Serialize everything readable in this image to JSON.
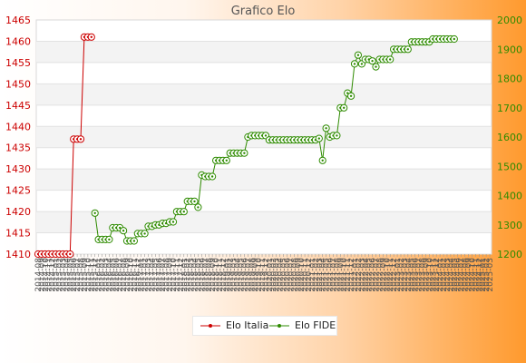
{
  "chart_data": {
    "type": "line",
    "title": "Grafico Elo",
    "left_axis": {
      "min": 1410,
      "max": 1465,
      "step": 5,
      "color": "#cc0000"
    },
    "right_axis": {
      "min": 1200,
      "max": 2000,
      "step": 100,
      "color": "#2e8b00"
    },
    "grid": true,
    "legend_placement": "bottom",
    "x_tick_labels": [
      "2014-08",
      "2014-09",
      "2014-10",
      "2014-11",
      "2014-12",
      "2015-01",
      "2015-02",
      "2015-03",
      "2015-04",
      "2015-05",
      "2015-06",
      "2015-07",
      "2015-08",
      "2015-09",
      "2015-10",
      "2015-11",
      "2015-12",
      "2016-01",
      "2016-02",
      "2016-03",
      "2016-04",
      "2016-05",
      "2016-06",
      "2016-07",
      "2016-08",
      "2016-09",
      "2016-10",
      "2016-11",
      "2016-12",
      "2017-01",
      "2017-02",
      "2017-03",
      "2017-04",
      "2017-05",
      "2017-06",
      "2017-07",
      "2017-08",
      "2017-09",
      "2017-10",
      "2017-11",
      "2017-12",
      "2018-01",
      "2018-02",
      "2018-03",
      "2018-04",
      "2018-05",
      "2018-06",
      "2018-07",
      "2018-08",
      "2018-09",
      "2018-10",
      "2018-11",
      "2018-12",
      "2019-01",
      "2019-02",
      "2019-03",
      "2019-04",
      "2019-05",
      "2019-06",
      "2019-07",
      "2019-08",
      "2019-09",
      "2019-10",
      "2019-11",
      "2019-12",
      "2020-01",
      "2020-02",
      "2020-03",
      "2020-04",
      "2020-05",
      "2020-06",
      "2020-07",
      "2020-08",
      "2020-09",
      "2020-10",
      "2020-11",
      "2020-12",
      "2021-01",
      "2021-02",
      "2021-03",
      "2021-04",
      "2021-05",
      "2021-06",
      "2021-07",
      "2021-08",
      "2021-09",
      "2021-10",
      "2021-11",
      "2021-12",
      "2022-01",
      "2022-02",
      "2022-03",
      "2022-04",
      "2022-05",
      "2022-06",
      "2022-07",
      "2022-08",
      "2022-09",
      "2022-10",
      "2022-11",
      "2022-12",
      "2023-01",
      "2023-02",
      "2023-03",
      "2023-04",
      "2023-05",
      "2023-06",
      "2023-07",
      "2023-08",
      "2023-09",
      "2023-10",
      "2023-11",
      "2023-12",
      "2024-01",
      "2024-02",
      "2024-03",
      "2024-04",
      "2024-05",
      "2024-06",
      "2024-07",
      "2024-08",
      "2024-09",
      "2024-10",
      "2024-11",
      "2024-12",
      "2025-01",
      "2025-02",
      "2025-03"
    ],
    "series": [
      {
        "name": "Elo Italia",
        "axis": "left",
        "color": "#cc0000",
        "points": [
          [
            "2014-08",
            1410
          ],
          [
            "2014-09",
            1410
          ],
          [
            "2014-10",
            1410
          ],
          [
            "2014-11",
            1410
          ],
          [
            "2014-12",
            1410
          ],
          [
            "2015-01",
            1410
          ],
          [
            "2015-02",
            1410
          ],
          [
            "2015-03",
            1410
          ],
          [
            "2015-04",
            1410
          ],
          [
            "2015-05",
            1410
          ],
          [
            "2015-06",
            1437
          ],
          [
            "2015-07",
            1437
          ],
          [
            "2015-08",
            1437
          ],
          [
            "2015-09",
            1461
          ],
          [
            "2015-10",
            1461
          ],
          [
            "2015-11",
            1461
          ]
        ]
      },
      {
        "name": "Elo FIDE",
        "axis": "right",
        "color": "#2e8b00",
        "points": [
          [
            "2015-12",
            1340
          ],
          [
            "2016-01",
            1250
          ],
          [
            "2016-02",
            1250
          ],
          [
            "2016-03",
            1250
          ],
          [
            "2016-04",
            1250
          ],
          [
            "2016-05",
            1290
          ],
          [
            "2016-06",
            1290
          ],
          [
            "2016-07",
            1290
          ],
          [
            "2016-08",
            1280
          ],
          [
            "2016-09",
            1245
          ],
          [
            "2016-10",
            1245
          ],
          [
            "2016-11",
            1245
          ],
          [
            "2016-12",
            1270
          ],
          [
            "2017-01",
            1270
          ],
          [
            "2017-02",
            1270
          ],
          [
            "2017-03",
            1295
          ],
          [
            "2017-04",
            1295
          ],
          [
            "2017-05",
            1300
          ],
          [
            "2017-06",
            1300
          ],
          [
            "2017-07",
            1305
          ],
          [
            "2017-08",
            1305
          ],
          [
            "2017-09",
            1310
          ],
          [
            "2017-10",
            1310
          ],
          [
            "2017-11",
            1345
          ],
          [
            "2017-12",
            1345
          ],
          [
            "2018-01",
            1345
          ],
          [
            "2018-02",
            1380
          ],
          [
            "2018-03",
            1380
          ],
          [
            "2018-04",
            1380
          ],
          [
            "2018-05",
            1360
          ],
          [
            "2018-06",
            1470
          ],
          [
            "2018-07",
            1465
          ],
          [
            "2018-08",
            1465
          ],
          [
            "2018-09",
            1465
          ],
          [
            "2018-10",
            1520
          ],
          [
            "2018-11",
            1520
          ],
          [
            "2018-12",
            1520
          ],
          [
            "2019-01",
            1520
          ],
          [
            "2019-02",
            1545
          ],
          [
            "2019-03",
            1545
          ],
          [
            "2019-04",
            1545
          ],
          [
            "2019-05",
            1545
          ],
          [
            "2019-06",
            1545
          ],
          [
            "2019-07",
            1600
          ],
          [
            "2019-08",
            1605
          ],
          [
            "2019-09",
            1605
          ],
          [
            "2019-10",
            1605
          ],
          [
            "2019-11",
            1605
          ],
          [
            "2019-12",
            1605
          ],
          [
            "2020-01",
            1590
          ],
          [
            "2020-02",
            1590
          ],
          [
            "2020-03",
            1590
          ],
          [
            "2020-04",
            1590
          ],
          [
            "2020-05",
            1590
          ],
          [
            "2020-06",
            1590
          ],
          [
            "2020-07",
            1590
          ],
          [
            "2020-08",
            1590
          ],
          [
            "2020-09",
            1590
          ],
          [
            "2020-10",
            1590
          ],
          [
            "2020-11",
            1590
          ],
          [
            "2020-12",
            1590
          ],
          [
            "2021-01",
            1590
          ],
          [
            "2021-02",
            1590
          ],
          [
            "2021-03",
            1595
          ],
          [
            "2021-04",
            1520
          ],
          [
            "2021-05",
            1630
          ],
          [
            "2021-06",
            1600
          ],
          [
            "2021-07",
            1605
          ],
          [
            "2021-08",
            1605
          ],
          [
            "2021-09",
            1700
          ],
          [
            "2021-10",
            1700
          ],
          [
            "2021-11",
            1750
          ],
          [
            "2021-12",
            1740
          ],
          [
            "2022-01",
            1850
          ],
          [
            "2022-02",
            1880
          ],
          [
            "2022-03",
            1850
          ],
          [
            "2022-04",
            1865
          ],
          [
            "2022-05",
            1865
          ],
          [
            "2022-06",
            1860
          ],
          [
            "2022-07",
            1840
          ],
          [
            "2022-08",
            1865
          ],
          [
            "2022-09",
            1865
          ],
          [
            "2022-10",
            1865
          ],
          [
            "2022-11",
            1865
          ],
          [
            "2022-12",
            1900
          ],
          [
            "2023-01",
            1900
          ],
          [
            "2023-02",
            1900
          ],
          [
            "2023-03",
            1900
          ],
          [
            "2023-04",
            1900
          ],
          [
            "2023-05",
            1925
          ],
          [
            "2023-06",
            1925
          ],
          [
            "2023-07",
            1925
          ],
          [
            "2023-08",
            1925
          ],
          [
            "2023-09",
            1925
          ],
          [
            "2023-10",
            1925
          ],
          [
            "2023-11",
            1935
          ],
          [
            "2023-12",
            1935
          ],
          [
            "2024-01",
            1935
          ],
          [
            "2024-02",
            1935
          ],
          [
            "2024-03",
            1935
          ],
          [
            "2024-04",
            1935
          ],
          [
            "2024-05",
            1935
          ]
        ]
      }
    ]
  }
}
